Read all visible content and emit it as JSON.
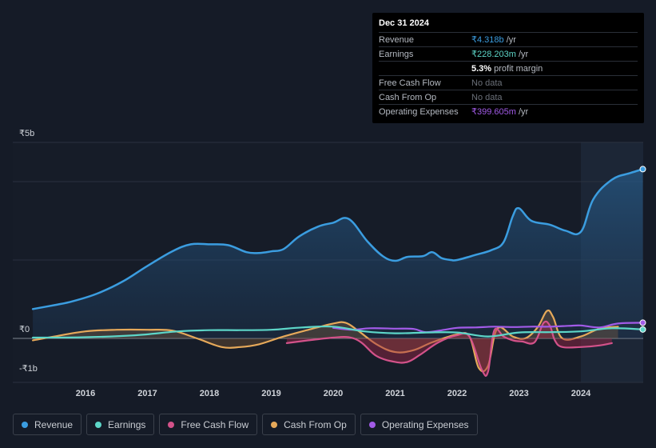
{
  "tooltip": {
    "date": "Dec 31 2024",
    "rows": [
      {
        "label": "Revenue",
        "value": "₹4.318b",
        "unit": " /yr",
        "color": "#3b9de0"
      },
      {
        "label": "Earnings",
        "value": "₹228.203m",
        "unit": " /yr",
        "color": "#5dd6c8"
      },
      {
        "label": "",
        "value": "5.3%",
        "unit": " profit margin",
        "color": "#ffffff"
      },
      {
        "label": "Free Cash Flow",
        "value": "No data",
        "unit": "",
        "color": "#6b7079"
      },
      {
        "label": "Cash From Op",
        "value": "No data",
        "unit": "",
        "color": "#6b7079"
      },
      {
        "label": "Operating Expenses",
        "value": "₹399.605m",
        "unit": " /yr",
        "color": "#a25be8"
      }
    ]
  },
  "legend": [
    {
      "label": "Revenue",
      "color": "#3b9de0"
    },
    {
      "label": "Earnings",
      "color": "#5dd6c8"
    },
    {
      "label": "Free Cash Flow",
      "color": "#d3528a"
    },
    {
      "label": "Cash From Op",
      "color": "#e6a95a"
    },
    {
      "label": "Operating Expenses",
      "color": "#a25be8"
    }
  ],
  "chart_data": {
    "type": "line",
    "title": "",
    "xlabel": "",
    "ylabel": "",
    "ylim": [
      -1,
      5
    ],
    "y_unit": "₹b",
    "y_tick_labels": [
      {
        "value": 5,
        "label": "₹5b"
      },
      {
        "value": 0,
        "label": "₹0"
      },
      {
        "value": -1,
        "label": "-₹1b"
      }
    ],
    "x_range": [
      2015.15,
      2025.0
    ],
    "x_tick_labels": [
      "2016",
      "2017",
      "2018",
      "2019",
      "2020",
      "2021",
      "2022",
      "2023",
      "2024"
    ],
    "x_tick_values": [
      2016,
      2017,
      2018,
      2019,
      2020,
      2021,
      2022,
      2023,
      2024
    ],
    "forecast_start": 2024.0,
    "series": [
      {
        "name": "Revenue",
        "color": "#3b9de0",
        "fill": true,
        "x": [
          2015.15,
          2015.5,
          2015.8,
          2016.2,
          2016.6,
          2017.0,
          2017.4,
          2017.7,
          2018.0,
          2018.3,
          2018.6,
          2018.8,
          2019.0,
          2019.2,
          2019.45,
          2019.75,
          2020.0,
          2020.25,
          2020.55,
          2020.8,
          2021.0,
          2021.2,
          2021.45,
          2021.6,
          2021.75,
          2021.9,
          2022.0,
          2022.3,
          2022.55,
          2022.75,
          2022.9,
          2023.0,
          2023.2,
          2023.5,
          2023.75,
          2024.0,
          2024.2,
          2024.5,
          2024.8,
          2025.0
        ],
        "values": [
          0.75,
          0.85,
          0.95,
          1.15,
          1.45,
          1.85,
          2.22,
          2.4,
          2.4,
          2.38,
          2.2,
          2.18,
          2.22,
          2.28,
          2.6,
          2.85,
          2.95,
          3.05,
          2.48,
          2.1,
          1.98,
          2.08,
          2.1,
          2.2,
          2.05,
          2.0,
          2.0,
          2.13,
          2.25,
          2.45,
          3.12,
          3.32,
          3.0,
          2.9,
          2.75,
          2.72,
          3.55,
          4.05,
          4.22,
          4.318
        ]
      },
      {
        "name": "Earnings",
        "color": "#5dd6c8",
        "fill": false,
        "x": [
          2015.15,
          2016.0,
          2016.8,
          2017.5,
          2018.0,
          2018.5,
          2019.0,
          2019.5,
          2020.0,
          2020.5,
          2021.0,
          2021.5,
          2022.0,
          2022.5,
          2023.0,
          2023.5,
          2024.0,
          2024.5,
          2025.0
        ],
        "values": [
          0.02,
          0.03,
          0.08,
          0.18,
          0.21,
          0.21,
          0.22,
          0.28,
          0.3,
          0.18,
          0.13,
          0.15,
          0.15,
          0.05,
          0.15,
          0.16,
          0.18,
          0.26,
          0.228
        ]
      },
      {
        "name": "Free Cash Flow",
        "color": "#d3528a",
        "fill": true,
        "x": [
          2019.25,
          2019.6,
          2020.0,
          2020.25,
          2020.45,
          2020.7,
          2021.0,
          2021.2,
          2021.4,
          2021.7,
          2022.0,
          2022.2,
          2022.4,
          2022.5,
          2022.6,
          2022.75,
          2022.9,
          2023.05,
          2023.25,
          2023.4,
          2023.5,
          2023.58,
          2023.7,
          2024.0,
          2024.3,
          2024.5
        ],
        "values": [
          -0.12,
          -0.05,
          0.02,
          0.03,
          -0.1,
          -0.45,
          -0.6,
          -0.6,
          -0.42,
          -0.1,
          0.08,
          0.05,
          -0.8,
          -0.85,
          0.2,
          0.05,
          -0.05,
          -0.08,
          -0.1,
          0.4,
          0.32,
          -0.05,
          -0.22,
          -0.22,
          -0.18,
          -0.12
        ]
      },
      {
        "name": "Cash From Op",
        "color": "#e6a95a",
        "fill": true,
        "x": [
          2015.15,
          2015.5,
          2016.0,
          2016.5,
          2017.0,
          2017.4,
          2017.8,
          2018.2,
          2018.5,
          2018.8,
          2019.2,
          2019.6,
          2020.0,
          2020.2,
          2020.4,
          2020.7,
          2021.0,
          2021.3,
          2021.6,
          2022.0,
          2022.2,
          2022.35,
          2022.5,
          2022.65,
          2022.9,
          2023.1,
          2023.3,
          2023.45,
          2023.55,
          2023.7,
          2024.0,
          2024.3,
          2024.6
        ],
        "values": [
          -0.05,
          0.05,
          0.18,
          0.22,
          0.22,
          0.2,
          0.0,
          -0.22,
          -0.22,
          -0.15,
          0.05,
          0.22,
          0.38,
          0.4,
          0.2,
          -0.15,
          -0.35,
          -0.3,
          -0.1,
          0.1,
          0.05,
          -0.75,
          -0.7,
          0.25,
          0.05,
          0.0,
          0.28,
          0.7,
          0.55,
          0.0,
          0.05,
          0.25,
          0.3
        ]
      },
      {
        "name": "Operating Expenses",
        "color": "#a25be8",
        "fill": false,
        "x": [
          2020.0,
          2020.3,
          2020.6,
          2021.0,
          2021.3,
          2021.5,
          2021.8,
          2022.0,
          2022.3,
          2022.6,
          2022.9,
          2023.2,
          2023.5,
          2023.8,
          2024.0,
          2024.3,
          2024.6,
          2025.0
        ],
        "values": [
          0.27,
          0.22,
          0.26,
          0.25,
          0.24,
          0.16,
          0.22,
          0.27,
          0.28,
          0.3,
          0.29,
          0.3,
          0.3,
          0.32,
          0.33,
          0.28,
          0.38,
          0.3996
        ]
      }
    ]
  }
}
